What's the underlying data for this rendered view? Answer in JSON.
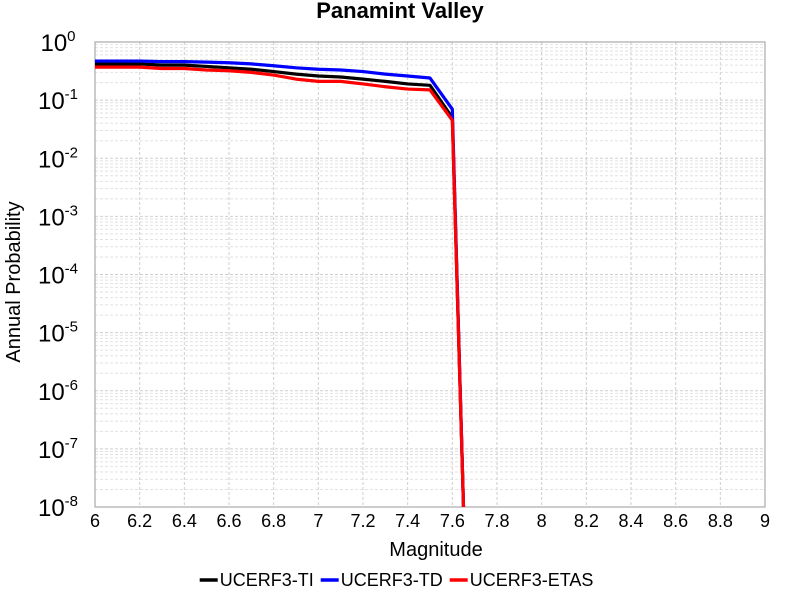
{
  "chart_data": {
    "type": "line",
    "title": "Panamint Valley",
    "xlabel": "Magnitude",
    "ylabel": "Annual Probability",
    "xlim": [
      6,
      9
    ],
    "ylim": [
      1e-08,
      1
    ],
    "yscale": "log",
    "grid": true,
    "legend_position": "bottom",
    "x_ticks": [
      "6",
      "6.2",
      "6.4",
      "6.6",
      "6.8",
      "7",
      "7.2",
      "7.4",
      "7.6",
      "7.8",
      "8",
      "8.2",
      "8.4",
      "8.6",
      "8.8",
      "9"
    ],
    "y_ticks": [
      {
        "base": "10",
        "exp": "0"
      },
      {
        "base": "10",
        "exp": "-1"
      },
      {
        "base": "10",
        "exp": "-2"
      },
      {
        "base": "10",
        "exp": "-3"
      },
      {
        "base": "10",
        "exp": "-4"
      },
      {
        "base": "10",
        "exp": "-5"
      },
      {
        "base": "10",
        "exp": "-6"
      },
      {
        "base": "10",
        "exp": "-7"
      },
      {
        "base": "10",
        "exp": "-8"
      }
    ],
    "series": [
      {
        "name": "UCERF3-TI",
        "color": "#000000",
        "x": [
          6.0,
          6.1,
          6.2,
          6.3,
          6.4,
          6.5,
          6.6,
          6.7,
          6.8,
          6.9,
          7.0,
          7.1,
          7.2,
          7.3,
          7.4,
          7.5,
          7.6,
          7.65
        ],
        "y": [
          0.42,
          0.42,
          0.42,
          0.4,
          0.4,
          0.38,
          0.36,
          0.34,
          0.31,
          0.28,
          0.26,
          0.25,
          0.23,
          0.21,
          0.19,
          0.18,
          0.05,
          1e-08
        ]
      },
      {
        "name": "UCERF3-TD",
        "color": "#0000ff",
        "x": [
          6.0,
          6.1,
          6.2,
          6.3,
          6.4,
          6.5,
          6.6,
          6.7,
          6.8,
          6.9,
          7.0,
          7.1,
          7.2,
          7.3,
          7.4,
          7.5,
          7.6,
          7.65
        ],
        "y": [
          0.47,
          0.47,
          0.47,
          0.46,
          0.46,
          0.45,
          0.44,
          0.42,
          0.39,
          0.36,
          0.34,
          0.33,
          0.31,
          0.28,
          0.26,
          0.24,
          0.07,
          1e-08
        ]
      },
      {
        "name": "UCERF3-ETAS",
        "color": "#ff0000",
        "x": [
          6.0,
          6.1,
          6.2,
          6.3,
          6.4,
          6.5,
          6.6,
          6.7,
          6.8,
          6.9,
          7.0,
          7.1,
          7.2,
          7.3,
          7.4,
          7.5,
          7.6,
          7.65
        ],
        "y": [
          0.37,
          0.37,
          0.37,
          0.35,
          0.35,
          0.33,
          0.32,
          0.3,
          0.27,
          0.23,
          0.21,
          0.21,
          0.19,
          0.17,
          0.155,
          0.15,
          0.045,
          1e-08
        ]
      }
    ]
  }
}
